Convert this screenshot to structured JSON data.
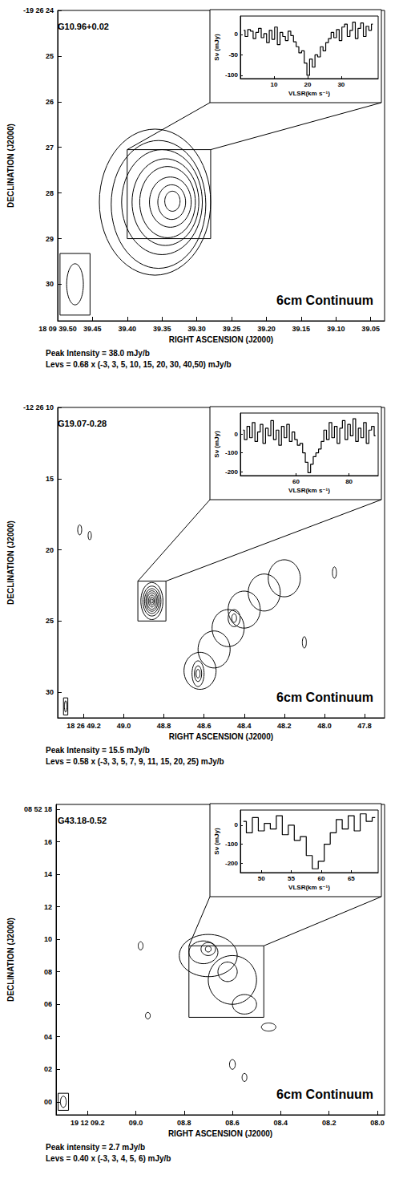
{
  "chart_data": [
    {
      "type": "contour",
      "title": "G10.96+0.02",
      "annotation": "6cm Continuum",
      "xlabel": "RIGHT ASCENSION (J2000)",
      "ylabel": "DECLINATION (J2000)",
      "peak_text": "Peak Intensity = 38.0 mJy/b",
      "levels_text": "Levs = 0.68 x (-3, 3, 5, 10, 15, 20, 30, 40,50) mJy/b",
      "xlim": [
        39.5,
        39.03
      ],
      "xticks": [
        {
          "value": 39.5,
          "label": "18 09 39.50"
        },
        39.45,
        {
          "value": 39.4,
          "label": "39.40"
        },
        39.35,
        {
          "value": 39.3,
          "label": "39.30"
        },
        39.25,
        {
          "value": 39.2,
          "label": "39.20"
        },
        39.15,
        {
          "value": 39.1,
          "label": "39.10"
        },
        39.05
      ],
      "ylim": [
        30.8,
        24
      ],
      "yticks": [
        {
          "value": 24,
          "label": "-19 26 24"
        },
        25,
        26,
        27,
        28,
        29,
        30
      ],
      "contours": [
        {
          "level": 3,
          "ra": 39.36,
          "dec": 28.2,
          "ra_radius": 0.08,
          "dec_radius": 1.6
        },
        {
          "level": 5,
          "ra": 39.355,
          "dec": 28.25,
          "ra_radius": 0.068,
          "dec_radius": 1.4
        },
        {
          "level": 10,
          "ra": 39.35,
          "dec": 28.2,
          "ra_radius": 0.058,
          "dec_radius": 1.15
        },
        {
          "level": 15,
          "ra": 39.345,
          "dec": 28.2,
          "ra_radius": 0.048,
          "dec_radius": 0.95
        },
        {
          "level": 20,
          "ra": 39.342,
          "dec": 28.2,
          "ra_radius": 0.04,
          "dec_radius": 0.78
        },
        {
          "level": 30,
          "ra": 39.338,
          "dec": 28.2,
          "ra_radius": 0.03,
          "dec_radius": 0.55
        },
        {
          "level": 40,
          "ra": 39.336,
          "dec": 28.2,
          "ra_radius": 0.02,
          "dec_radius": 0.38
        },
        {
          "level": 50,
          "ra": 39.335,
          "dec": 28.18,
          "ra_radius": 0.011,
          "dec_radius": 0.22
        }
      ],
      "beam": {
        "ra": 39.475,
        "dec": 30.0,
        "ra_radius": 0.012,
        "dec_radius": 0.45
      },
      "box": {
        "ra": [
          39.4,
          39.28
        ],
        "dec": [
          27.05,
          29.0
        ]
      },
      "inset": {
        "type": "line",
        "line_style": "step",
        "xlabel": "VLSR(km s⁻¹)",
        "ylabel": "Sν (mJy)",
        "xlim": [
          0,
          41
        ],
        "xticks": [
          10,
          20,
          30
        ],
        "ylim": [
          -108,
          45
        ],
        "yticks": [
          -100,
          -50,
          0
        ],
        "x": [
          1.0,
          1.8,
          2.6,
          3.4,
          4.2,
          5.0,
          5.8,
          6.6,
          7.4,
          8.2,
          9.0,
          9.8,
          10.6,
          11.4,
          12.2,
          13.0,
          13.8,
          14.6,
          15.4,
          16.2,
          17.0,
          17.8,
          18.6,
          19.4,
          20.2,
          21.0,
          21.8,
          22.6,
          23.4,
          24.2,
          25.0,
          25.8,
          26.6,
          27.4,
          28.2,
          29.0,
          29.8,
          30.6,
          31.4,
          32.2,
          33.0,
          33.8,
          34.6,
          35.4,
          36.2,
          37.0,
          37.8,
          38.6,
          39.4
        ],
        "values": [
          10,
          -5,
          12,
          8,
          -10,
          5,
          15,
          -8,
          2,
          -20,
          10,
          -12,
          18,
          -25,
          5,
          -5,
          -15,
          8,
          -3,
          -18,
          -30,
          -45,
          -40,
          -70,
          -100,
          -60,
          -80,
          -50,
          -55,
          -30,
          -40,
          -20,
          -10,
          5,
          -8,
          12,
          -15,
          18,
          25,
          -5,
          10,
          30,
          -10,
          15,
          28,
          -5,
          20,
          10,
          25
        ]
      }
    },
    {
      "type": "contour",
      "title": "G19.07-0.28",
      "annotation": "6cm Continuum",
      "xlabel": "RIGHT ASCENSION (J2000)",
      "ylabel": "DECLINATION (J2000)",
      "peak_text": "Peak Intensity = 15.5 mJy/b",
      "levels_text": "Levs = 0.58 x (-3, 3, 5, 7, 9, 11, 15, 20, 25) mJy/b",
      "xlim": [
        49.33,
        47.7
      ],
      "xticks": [
        {
          "value": 49.2,
          "label": "18 26 49.2"
        },
        {
          "value": 49.0,
          "label": "49.0"
        },
        48.8,
        48.6,
        48.4,
        48.2,
        {
          "value": 48.0,
          "label": "48.0"
        },
        47.8
      ],
      "ylim": [
        31.8,
        10
      ],
      "yticks": [
        {
          "value": 10,
          "label": "-12 26 10"
        },
        15,
        20,
        25,
        30
      ],
      "contours": [
        {
          "level": 3,
          "ra": 48.86,
          "dec": 23.6,
          "ra_radius": 0.055,
          "dec_radius": 1.3
        },
        {
          "level": 5,
          "ra": 48.86,
          "dec": 23.6,
          "ra_radius": 0.045,
          "dec_radius": 1.05
        },
        {
          "level": 7,
          "ra": 48.86,
          "dec": 23.6,
          "ra_radius": 0.037,
          "dec_radius": 0.87
        },
        {
          "level": 9,
          "ra": 48.86,
          "dec": 23.6,
          "ra_radius": 0.03,
          "dec_radius": 0.72
        },
        {
          "level": 11,
          "ra": 48.86,
          "dec": 23.6,
          "ra_radius": 0.024,
          "dec_radius": 0.58
        },
        {
          "level": 15,
          "ra": 48.86,
          "dec": 23.6,
          "ra_radius": 0.017,
          "dec_radius": 0.42
        },
        {
          "level": 20,
          "ra": 48.86,
          "dec": 23.6,
          "ra_radius": 0.011,
          "dec_radius": 0.28
        },
        {
          "level": 25,
          "ra": 48.86,
          "dec": 23.6,
          "ra_radius": 0.006,
          "dec_radius": 0.15
        },
        {
          "level": 3,
          "ra": 48.62,
          "dec": 28.5,
          "ra_radius": 0.08,
          "dec_radius": 1.3
        },
        {
          "level": 3,
          "ra": 48.55,
          "dec": 27.0,
          "ra_radius": 0.08,
          "dec_radius": 1.3
        },
        {
          "level": 3,
          "ra": 48.48,
          "dec": 25.5,
          "ra_radius": 0.08,
          "dec_radius": 1.3
        },
        {
          "level": 3,
          "ra": 48.4,
          "dec": 24.2,
          "ra_radius": 0.08,
          "dec_radius": 1.3
        },
        {
          "level": 3,
          "ra": 48.3,
          "dec": 23.0,
          "ra_radius": 0.08,
          "dec_radius": 1.3
        },
        {
          "level": 3,
          "ra": 48.2,
          "dec": 22.0,
          "ra_radius": 0.08,
          "dec_radius": 1.3
        },
        {
          "level": 5,
          "ra": 48.63,
          "dec": 28.7,
          "ra_radius": 0.03,
          "dec_radius": 0.9
        },
        {
          "level": 7,
          "ra": 48.63,
          "dec": 28.7,
          "ra_radius": 0.018,
          "dec_radius": 0.55
        },
        {
          "level": 9,
          "ra": 48.63,
          "dec": 28.7,
          "ra_radius": 0.01,
          "dec_radius": 0.3
        },
        {
          "level": 5,
          "ra": 48.45,
          "dec": 24.8,
          "ra_radius": 0.03,
          "dec_radius": 0.6
        },
        {
          "level": 7,
          "ra": 48.45,
          "dec": 24.8,
          "ra_radius": 0.012,
          "dec_radius": 0.3
        },
        {
          "level": 3,
          "ra": 49.22,
          "dec": 18.6,
          "ra_radius": 0.01,
          "dec_radius": 0.35
        },
        {
          "level": 3,
          "ra": 49.17,
          "dec": 19.0,
          "ra_radius": 0.008,
          "dec_radius": 0.3
        },
        {
          "level": 3,
          "ra": 48.1,
          "dec": 26.5,
          "ra_radius": 0.01,
          "dec_radius": 0.4
        },
        {
          "level": 3,
          "ra": 47.95,
          "dec": 21.6,
          "ra_radius": 0.01,
          "dec_radius": 0.4
        }
      ],
      "beam": {
        "ra": 49.29,
        "dec": 31.0,
        "ra_radius": 0.006,
        "dec_radius": 0.4
      },
      "box": {
        "ra": [
          48.93,
          48.79
        ],
        "dec": [
          22.2,
          25.0
        ]
      },
      "inset": {
        "type": "line",
        "line_style": "step",
        "xlabel": "VLSR(km s⁻¹)",
        "ylabel": "Sν (mJy)",
        "xlim": [
          39,
          91
        ],
        "xticks": [
          60,
          80
        ],
        "ylim": [
          -220,
          110
        ],
        "yticks": [
          -200,
          -100,
          0
        ],
        "x": [
          40,
          41,
          42,
          43,
          44,
          45,
          46,
          47,
          48,
          49,
          50,
          51,
          52,
          53,
          54,
          55,
          56,
          57,
          58,
          59,
          60,
          61,
          62,
          63,
          64,
          65,
          66,
          67,
          68,
          69,
          70,
          71,
          72,
          73,
          74,
          75,
          76,
          77,
          78,
          79,
          80,
          81,
          82,
          83,
          84,
          85,
          86,
          87,
          88,
          89,
          90
        ],
        "values": [
          20,
          -30,
          40,
          -20,
          60,
          -40,
          10,
          50,
          -50,
          30,
          -10,
          70,
          -30,
          20,
          -60,
          40,
          -20,
          50,
          -40,
          10,
          -30,
          -60,
          -50,
          -100,
          -150,
          -205,
          -160,
          -120,
          -100,
          -80,
          -40,
          20,
          -30,
          60,
          -20,
          40,
          -50,
          30,
          70,
          -30,
          50,
          -10,
          80,
          -40,
          30,
          -20,
          60,
          -50,
          20,
          40,
          -10
        ]
      }
    },
    {
      "type": "contour",
      "title": "G43.18-0.52",
      "annotation": "6cm Continuum",
      "xlabel": "RIGHT ASCENSION (J2000)",
      "ylabel": "DECLINATION (J2000)",
      "peak_text": "Peak intensity = 2.7 mJy/b",
      "levels_text": "Levs = 0.40 x (-3, 3, 4, 5, 6) mJy/b",
      "xlim": [
        9.33,
        7.97
      ],
      "xticks": [
        {
          "value": 9.2,
          "label": "19 12 09.2"
        },
        {
          "value": 9.0,
          "label": "09.0"
        },
        {
          "value": 8.8,
          "label": "08.8"
        },
        {
          "value": 8.6,
          "label": "08.6"
        },
        {
          "value": 8.4,
          "label": "08.4"
        },
        {
          "value": 8.2,
          "label": "08.2"
        },
        {
          "value": 8.0,
          "label": "08.0"
        }
      ],
      "ylim": [
        -0.8,
        18.3
      ],
      "yticks": [
        {
          "value": 0,
          "label": "00"
        },
        {
          "value": 2,
          "label": "02"
        },
        {
          "value": 4,
          "label": "04"
        },
        {
          "value": 6,
          "label": "06"
        },
        {
          "value": 8,
          "label": "08"
        },
        10,
        12,
        14,
        16,
        {
          "value": 18,
          "label": "08 52 18"
        }
      ],
      "contours": [
        {
          "level": 3,
          "ra": 8.7,
          "dec": 9.0,
          "ra_radius": 0.12,
          "dec_radius": 1.3
        },
        {
          "level": 3,
          "ra": 8.6,
          "dec": 7.5,
          "ra_radius": 0.1,
          "dec_radius": 1.5
        },
        {
          "level": 3,
          "ra": 8.55,
          "dec": 6.0,
          "ra_radius": 0.05,
          "dec_radius": 0.6
        },
        {
          "level": 4,
          "ra": 8.72,
          "dec": 9.2,
          "ra_radius": 0.06,
          "dec_radius": 0.7
        },
        {
          "level": 4,
          "ra": 8.62,
          "dec": 8.0,
          "ra_radius": 0.04,
          "dec_radius": 0.6
        },
        {
          "level": 5,
          "ra": 8.7,
          "dec": 9.4,
          "ra_radius": 0.03,
          "dec_radius": 0.4
        },
        {
          "level": 6,
          "ra": 8.7,
          "dec": 9.4,
          "ra_radius": 0.012,
          "dec_radius": 0.18
        },
        {
          "level": 3,
          "ra": 8.98,
          "dec": 9.6,
          "ra_radius": 0.01,
          "dec_radius": 0.25
        },
        {
          "level": 3,
          "ra": 8.45,
          "dec": 4.6,
          "ra_radius": 0.03,
          "dec_radius": 0.25
        },
        {
          "level": 3,
          "ra": 8.6,
          "dec": 2.3,
          "ra_radius": 0.012,
          "dec_radius": 0.3
        },
        {
          "level": 3,
          "ra": 8.55,
          "dec": 1.5,
          "ra_radius": 0.01,
          "dec_radius": 0.25
        },
        {
          "level": 3,
          "ra": 8.95,
          "dec": 5.3,
          "ra_radius": 0.01,
          "dec_radius": 0.2
        }
      ],
      "beam": {
        "ra": 9.3,
        "dec": 0.0,
        "ra_radius": 0.012,
        "dec_radius": 0.35
      },
      "box": {
        "ra": [
          8.78,
          8.47
        ],
        "dec": [
          5.2,
          9.6
        ]
      },
      "inset": {
        "type": "line",
        "line_style": "step",
        "xlabel": "VLSR(km s⁻¹)",
        "ylabel": "Sν (mJy)",
        "xlim": [
          46.5,
          69.5
        ],
        "xticks": [
          50,
          55,
          60,
          65
        ],
        "ylim": [
          -250,
          80
        ],
        "yticks": [
          -200,
          -100,
          0
        ],
        "x": [
          47,
          48,
          49,
          50,
          51,
          52,
          53,
          54,
          55,
          56,
          57,
          58,
          59,
          60,
          61,
          62,
          63,
          64,
          65,
          66,
          67,
          68,
          69
        ],
        "values": [
          20,
          -40,
          40,
          -30,
          10,
          -20,
          50,
          -50,
          0,
          -80,
          -60,
          -160,
          -230,
          -190,
          -100,
          -40,
          30,
          -20,
          50,
          -30,
          60,
          20,
          40
        ]
      }
    }
  ]
}
